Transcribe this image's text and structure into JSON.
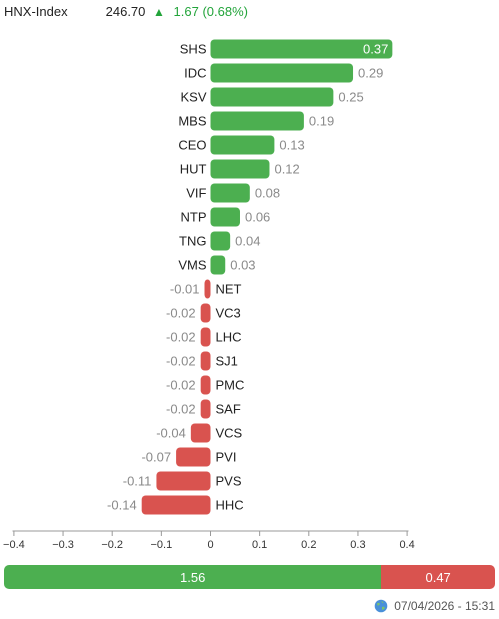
{
  "header": {
    "index_name": "HNX-Index",
    "index_value": "246.70",
    "change_arrow": "▲",
    "change_text": "1.67 (0.68%)",
    "change_color": "#22a43a"
  },
  "chart_data": {
    "type": "bar",
    "orientation": "horizontal",
    "categories": [
      "SHS",
      "IDC",
      "KSV",
      "MBS",
      "CEO",
      "HUT",
      "VIF",
      "NTP",
      "TNG",
      "VMS",
      "NET",
      "VC3",
      "LHC",
      "SJ1",
      "PMC",
      "SAF",
      "VCS",
      "PVI",
      "PVS",
      "HHC"
    ],
    "values": [
      0.37,
      0.29,
      0.25,
      0.19,
      0.13,
      0.12,
      0.08,
      0.06,
      0.04,
      0.03,
      -0.01,
      -0.02,
      -0.02,
      -0.02,
      -0.02,
      -0.02,
      -0.04,
      -0.07,
      -0.11,
      -0.14
    ],
    "value_labels": [
      "0.37",
      "0.29",
      "0.25",
      "0.19",
      "0.13",
      "0.12",
      "0.08",
      "0.06",
      "0.04",
      "0.03",
      "-0.01",
      "-0.02",
      "-0.02",
      "-0.02",
      "-0.02",
      "-0.02",
      "-0.04",
      "-0.07",
      "-0.11",
      "-0.14"
    ],
    "xlim": [
      -0.4,
      0.4
    ],
    "xticks": [
      -0.4,
      -0.3,
      -0.2,
      -0.1,
      0,
      0.1,
      0.2,
      0.3,
      0.4
    ],
    "xtick_labels": [
      "−0.4",
      "−0.3",
      "−0.2",
      "−0.1",
      "0",
      "0.1",
      "0.2",
      "0.3",
      "0.4"
    ],
    "positive_color": "#4caf50",
    "negative_color": "#d9534f",
    "grid": false
  },
  "summary": {
    "positive_value": 1.56,
    "negative_value": 0.47,
    "positive_label": "1.56",
    "negative_label": "0.47"
  },
  "footer": {
    "timestamp": "07/04/2026 - 15:31",
    "icon": "globe-icon"
  }
}
